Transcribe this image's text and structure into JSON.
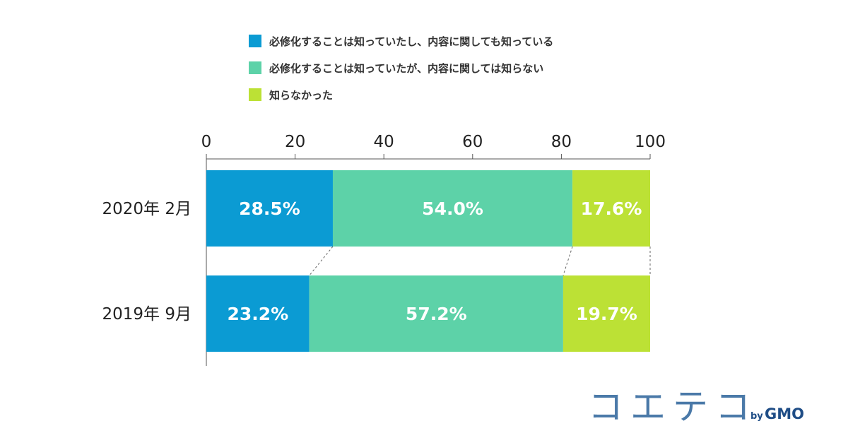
{
  "chart_data": {
    "type": "bar",
    "orientation": "horizontal",
    "stacked": true,
    "xlim": [
      0,
      100
    ],
    "xticks": [
      "0",
      "20",
      "40",
      "60",
      "80",
      "100"
    ],
    "categories": [
      "2020年 2月",
      "2019年 9月"
    ],
    "series": [
      {
        "name": "必修化することは知っていたし、内容に関しても知っている",
        "color": "#0b9bd3",
        "values": [
          28.5,
          23.2
        ],
        "labels": [
          "28.5%",
          "23.2%"
        ]
      },
      {
        "name": "必修化することは知っていたが、内容に関しては知らない",
        "color": "#5dd2a8",
        "values": [
          54.0,
          57.2
        ],
        "labels": [
          "54.0%",
          "57.2%"
        ]
      },
      {
        "name": "知らなかった",
        "color": "#bce135",
        "values": [
          17.6,
          19.7
        ],
        "labels": [
          "17.6%",
          "19.7%"
        ]
      }
    ],
    "legend_position": "top",
    "connector_lines": "dashed",
    "grid": false
  },
  "brand": {
    "logo_text": "コエテコ",
    "logo_by": "by",
    "logo_gmo": "GMO",
    "color": "#4a79a8"
  }
}
